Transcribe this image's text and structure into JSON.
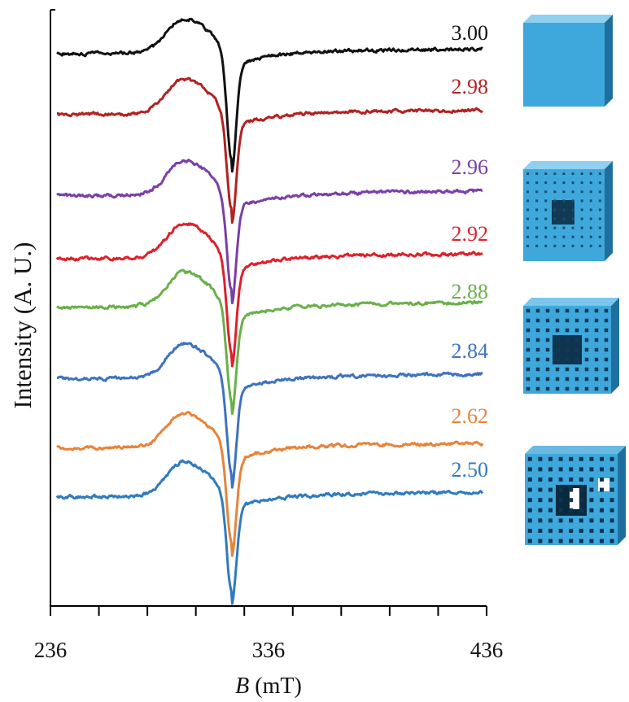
{
  "chart_data": {
    "type": "line",
    "xlabel_italic": "B",
    "xlabel_rest": " (mT)",
    "ylabel": "Intensity (A. U.)",
    "xlim": [
      236,
      436
    ],
    "x_ticks": [
      236,
      336,
      436
    ],
    "x_minor_ticks": [
      236,
      258.2,
      280.4,
      302.7,
      324.9,
      347.1,
      369.3,
      391.6,
      413.8,
      436
    ],
    "y_ticks_shown": false,
    "grid": false,
    "legend": "labels at right end of each trace",
    "center_field": 319,
    "series": [
      {
        "name": "3.00",
        "color": "#111111",
        "baseline": 0,
        "amp": 1.0
      },
      {
        "name": "2.98",
        "color": "#b22222",
        "baseline": 75,
        "amp": 1.0
      },
      {
        "name": "2.96",
        "color": "#7b3fa8",
        "baseline": 175,
        "amp": 1.0
      },
      {
        "name": "2.92",
        "color": "#e0202a",
        "baseline": 252,
        "amp": 1.0
      },
      {
        "name": "2.88",
        "color": "#6ab04a",
        "baseline": 312,
        "amp": 1.0
      },
      {
        "name": "2.84",
        "color": "#3f72c0",
        "baseline": 400,
        "amp": 1.0
      },
      {
        "name": "2.62",
        "color": "#e8833a",
        "baseline": 485,
        "amp": 1.0
      },
      {
        "name": "2.50",
        "color": "#2f7bbf",
        "baseline": 545,
        "amp": 1.0
      }
    ]
  },
  "insets": [
    {
      "name": "cube-level-0",
      "color": "#3ea8dc"
    },
    {
      "name": "cube-level-1",
      "color": "#3ea8dc"
    },
    {
      "name": "cube-level-2",
      "color": "#3ea8dc"
    },
    {
      "name": "cube-level-3",
      "color": "#3ea8dc"
    }
  ]
}
